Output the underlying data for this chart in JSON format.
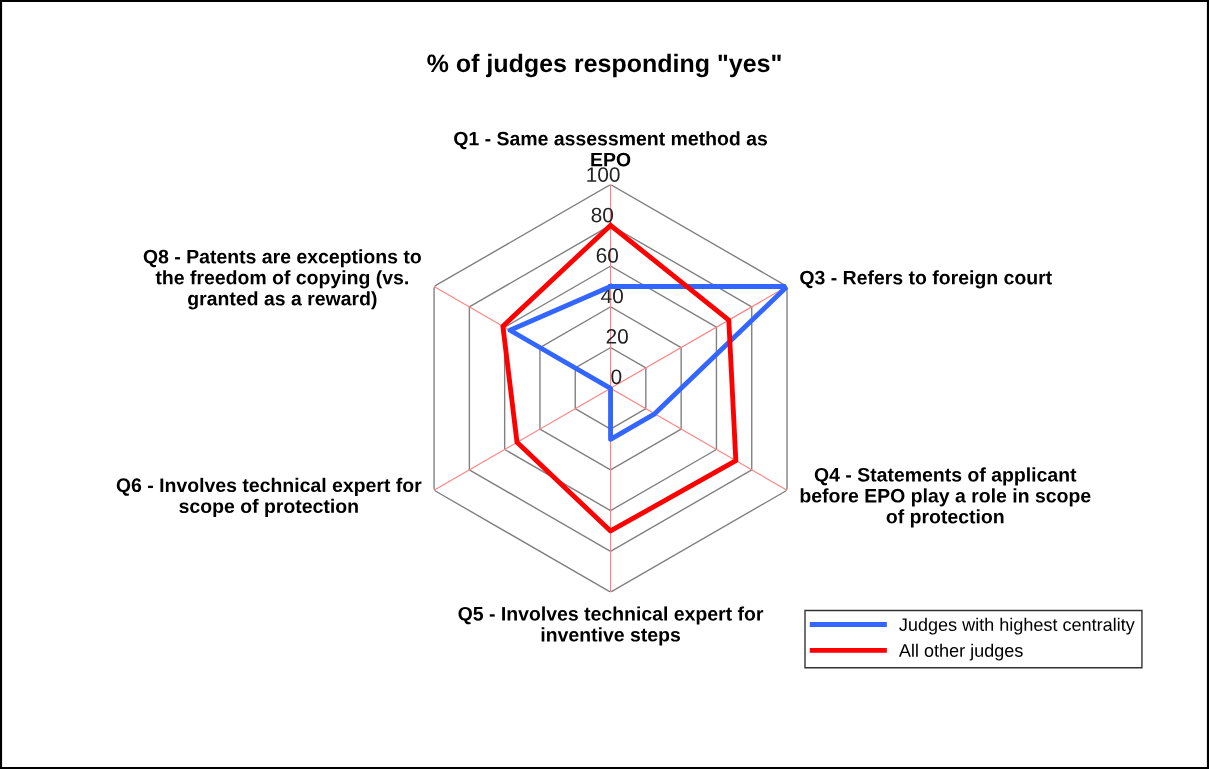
{
  "chart_data": {
    "type": "radar",
    "title": "% of judges responding \"yes\"",
    "categories": [
      "Q1 - Same assessment method as\nEPO",
      "Q3 - Refers to foreign court",
      "Q4 - Statements of applicant\nbefore EPO play a role in scope\nof protection",
      "Q5 - Involves technical expert for\ninventive steps",
      "Q6 - Involves technical expert for\nscope of protection",
      "Q8 - Patents are exceptions to\nthe freedom of copying (vs.\ngranted as a reward)"
    ],
    "series": [
      {
        "name": "Judges with highest centrality",
        "color": "#3366ff",
        "values": [
          50,
          100,
          25,
          25,
          0,
          57
        ]
      },
      {
        "name": "All other judges",
        "color": "#ff0000",
        "values": [
          80,
          67,
          71,
          70,
          53,
          61
        ]
      }
    ],
    "ylim": [
      0,
      100
    ],
    "yticks": [
      0,
      20,
      40,
      60,
      80,
      100
    ],
    "grid": true,
    "legend": "bottom right",
    "marker": "none",
    "line_style": "solid"
  }
}
